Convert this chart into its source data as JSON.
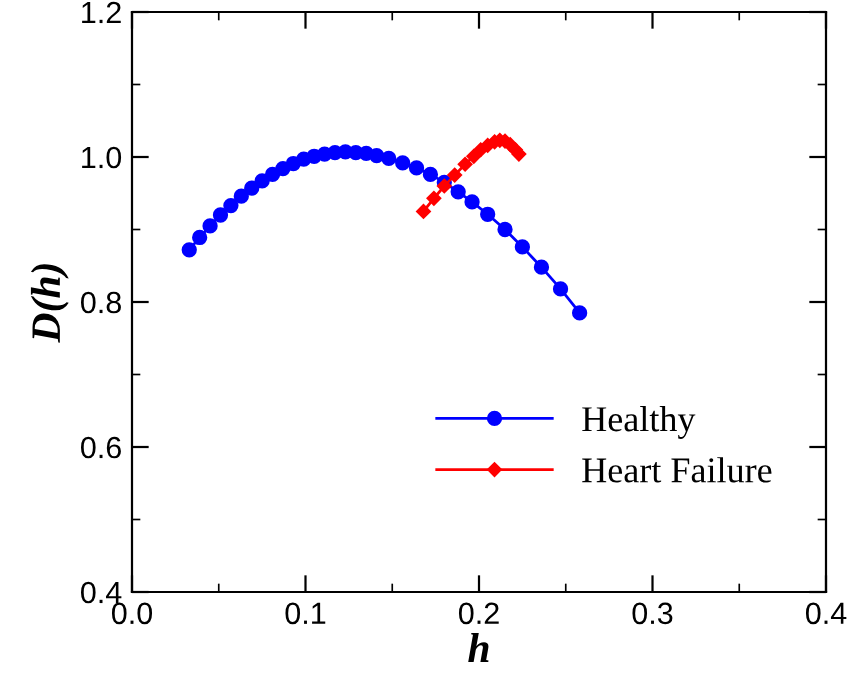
{
  "chart_data": {
    "type": "line",
    "xlabel": "h",
    "ylabel": "D(h)",
    "xlim": [
      0.0,
      0.4
    ],
    "ylim": [
      0.4,
      1.2
    ],
    "xticks": [
      {
        "value": 0.0,
        "label": "0.0"
      },
      {
        "value": 0.1,
        "label": "0.1"
      },
      {
        "value": 0.2,
        "label": "0.2"
      },
      {
        "value": 0.3,
        "label": "0.3"
      },
      {
        "value": 0.4,
        "label": "0.4"
      }
    ],
    "yticks": [
      {
        "value": 0.4,
        "label": "0.4"
      },
      {
        "value": 0.6,
        "label": "0.6"
      },
      {
        "value": 0.8,
        "label": "0.8"
      },
      {
        "value": 1.0,
        "label": "1.0"
      },
      {
        "value": 1.2,
        "label": "1.2"
      }
    ],
    "grid": false,
    "legend": "bottom right",
    "line_style": "solid",
    "series": [
      {
        "name": "Healthy",
        "color": "#0000ff",
        "marker": "circle",
        "x": [
          0.033,
          0.039,
          0.045,
          0.051,
          0.057,
          0.063,
          0.069,
          0.075,
          0.081,
          0.087,
          0.093,
          0.099,
          0.105,
          0.111,
          0.117,
          0.123,
          0.129,
          0.135,
          0.141,
          0.148,
          0.156,
          0.164,
          0.172,
          0.18,
          0.188,
          0.196,
          0.205,
          0.215,
          0.225,
          0.236,
          0.247,
          0.258
        ],
        "values": [
          0.872,
          0.889,
          0.905,
          0.92,
          0.933,
          0.946,
          0.957,
          0.967,
          0.976,
          0.984,
          0.991,
          0.997,
          1.001,
          1.004,
          1.006,
          1.007,
          1.006,
          1.005,
          1.002,
          0.998,
          0.992,
          0.985,
          0.976,
          0.965,
          0.952,
          0.938,
          0.921,
          0.9,
          0.876,
          0.848,
          0.818,
          0.785
        ]
      },
      {
        "name": "Heart Failure",
        "color": "#ff0000",
        "marker": "diamond",
        "x": [
          0.168,
          0.174,
          0.18,
          0.186,
          0.192,
          0.197,
          0.201,
          0.205,
          0.209,
          0.212,
          0.215,
          0.218,
          0.221,
          0.223
        ],
        "values": [
          0.925,
          0.943,
          0.96,
          0.975,
          0.99,
          1.001,
          1.01,
          1.016,
          1.021,
          1.023,
          1.022,
          1.017,
          1.01,
          1.004
        ]
      }
    ]
  }
}
